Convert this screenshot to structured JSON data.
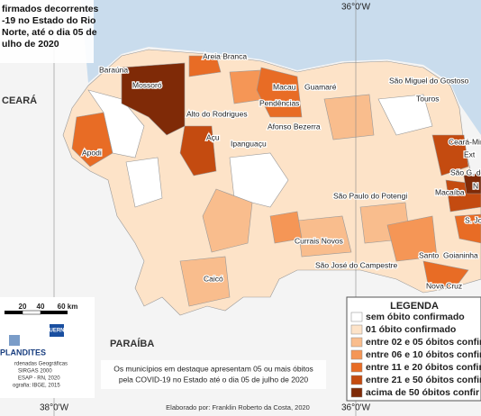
{
  "title_lines": [
    "firmados decorrentes",
    "-19 no Estado do Rio",
    "Norte, até o dia 05 de",
    "ulho de 2020"
  ],
  "coordinates": {
    "top": "36°0'W",
    "bottom_left": "38°0'W",
    "bottom_right": "36°0'W"
  },
  "states": [
    "CEARÁ",
    "PARAÍBA"
  ],
  "places": [
    "Baraúna",
    "Mossoró",
    "Areia Branca",
    "Macau",
    "Guamaré",
    "Pendências",
    "Alto do Rodrigues",
    "Afonso Bezerra",
    "Apodi",
    "Açu",
    "Ipanguaçu",
    "São Miguel do Gostoso",
    "Touros",
    "Ceará-Mirim",
    "Ext",
    "São G. do Am",
    "N",
    "Macaíba",
    "São Paulo do Potengi",
    "S. Jo",
    "Currais Novos",
    "Santo",
    "Goianinha",
    "São José do Campestre",
    "Nova Cruz",
    "Caicó"
  ],
  "legend": {
    "title": "LEGENDA",
    "items": [
      {
        "label": "sem óbito confirmado",
        "color": "#ffffff"
      },
      {
        "label": "01 óbito confirmado",
        "color": "#fde3c8"
      },
      {
        "label": "entre 02 e 05 óbitos confir",
        "color": "#f9bd8d"
      },
      {
        "label": "entre 06 e 10 óbitos confir",
        "color": "#f59656"
      },
      {
        "label": "entre 11 e 20 óbitos confir",
        "color": "#e86c25"
      },
      {
        "label": "entre 21 e 50 óbitos confir",
        "color": "#c44b10"
      },
      {
        "label": "acima de 50 óbitos confir",
        "color": "#7f2a07"
      }
    ]
  },
  "scale": [
    "20",
    "40",
    "60 km"
  ],
  "logos": [
    "UERN",
    "PLANDITES"
  ],
  "credits": [
    "rdenadas Geográficas",
    "SIRGAS 2000",
    "ESAP - RN, 2020",
    "ografia: IBGE, 2015"
  ],
  "note": [
    "Os municípios em destaque apresentam 05 ou mais óbitos",
    "pela COVID-19 no Estado até o dia 05 de julho de 2020"
  ],
  "author": "Elaborado por: Franklin Roberto da Costa, 2020"
}
